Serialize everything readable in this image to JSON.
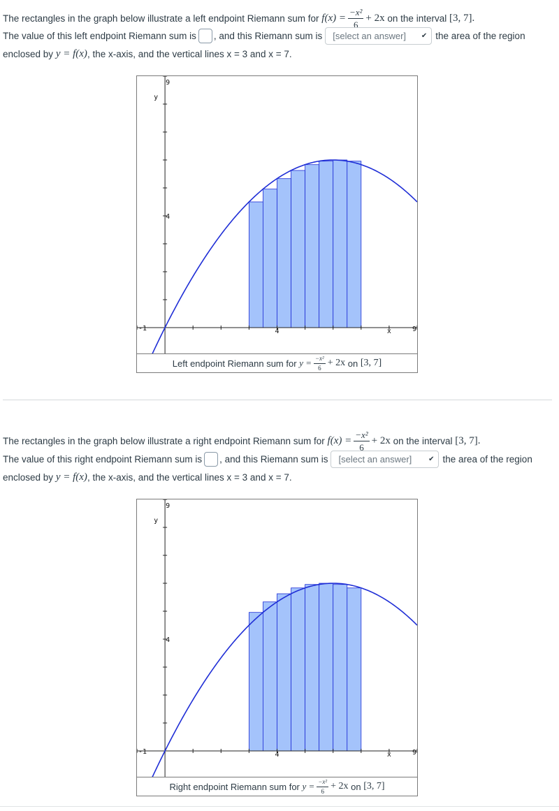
{
  "questions": [
    {
      "id": "left",
      "line1_prefix": "The rectangles in the graph below illustrate a left endpoint Riemann sum for",
      "func_name": "f(x) =",
      "func_num": "−x²",
      "func_den": "6",
      "func_tail": "+ 2x",
      "line1_mid": "on the interval",
      "interval": "[3, 7].",
      "line2_prefix": "The value of this left endpoint Riemann sum is",
      "line2_mid": ", and this Riemann sum is",
      "select_value": "[select an answer]",
      "line2_suffix": "the area of the region",
      "line3_prefix": "enclosed by",
      "line3_math": "y = f(x)",
      "line3_suffix": ", the x-axis, and the vertical lines x = 3 and x = 7.",
      "caption_prefix": "Left endpoint Riemann sum for",
      "caption_y": "y =",
      "caption_num": "−x²",
      "caption_den": "6",
      "caption_tail": "+ 2x",
      "caption_on": "on",
      "caption_interval": "[3, 7]",
      "endpoint": "left"
    },
    {
      "id": "right",
      "line1_prefix": "The rectangles in the graph below illustrate a right endpoint Riemann sum for",
      "func_name": "f(x) =",
      "func_num": "−x²",
      "func_den": "6",
      "func_tail": "+ 2x",
      "line1_mid": "on the interval",
      "interval": "[3, 7].",
      "line2_prefix": "The value of this right endpoint Riemann sum is",
      "line2_mid": ", and this Riemann sum is",
      "select_value": "[select an answer]",
      "line2_suffix": "the area of the region",
      "line3_prefix": "enclosed by",
      "line3_math": "y = f(x)",
      "line3_suffix": ", the x-axis, and the vertical lines x = 3 and x = 7.",
      "caption_prefix": "Right endpoint Riemann sum for",
      "caption_y": "y =",
      "caption_num": "−x²",
      "caption_den": "6",
      "caption_tail": "+ 2x",
      "caption_on": "on",
      "caption_interval": "[3, 7]",
      "endpoint": "right"
    }
  ],
  "chart_data": [
    {
      "type": "area",
      "function": "y = -x^2/6 + 2x",
      "interval": [
        3,
        7
      ],
      "subintervals": 8,
      "endpoint": "left",
      "x_rect_left": [
        3,
        3.5,
        4,
        4.5,
        5,
        5.5,
        6,
        6.5
      ],
      "heights": [
        4.5,
        4.958,
        5.333,
        5.625,
        5.833,
        5.958,
        6.0,
        5.958
      ],
      "xlim": [
        -1,
        9
      ],
      "ylim": [
        -1,
        9
      ],
      "tick_labels": {
        "xmin": "-1",
        "xmid": "4",
        "xmax": "9",
        "xname": "x",
        "ymin": "-1",
        "ymid": "4",
        "ymax": "9",
        "yname": "y"
      },
      "colors": {
        "curve": "#1f2ed6",
        "rect_fill": "#a4c3fb",
        "rect_stroke": "#1f2ed6"
      }
    },
    {
      "type": "area",
      "function": "y = -x^2/6 + 2x",
      "interval": [
        3,
        7
      ],
      "subintervals": 8,
      "endpoint": "right",
      "x_rect_left": [
        3,
        3.5,
        4,
        4.5,
        5,
        5.5,
        6,
        6.5
      ],
      "heights": [
        4.958,
        5.333,
        5.625,
        5.833,
        5.958,
        6.0,
        5.958,
        5.833
      ],
      "xlim": [
        -1,
        9
      ],
      "ylim": [
        -1,
        9
      ],
      "tick_labels": {
        "xmin": "-1",
        "xmid": "4",
        "xmax": "9",
        "xname": "x",
        "ymin": "-1",
        "ymid": "4",
        "ymax": "9",
        "yname": "y"
      },
      "colors": {
        "curve": "#1f2ed6",
        "rect_fill": "#a4c3fb",
        "rect_stroke": "#1f2ed6"
      }
    }
  ],
  "icons": {
    "dropdown": "chevron-down-icon"
  }
}
